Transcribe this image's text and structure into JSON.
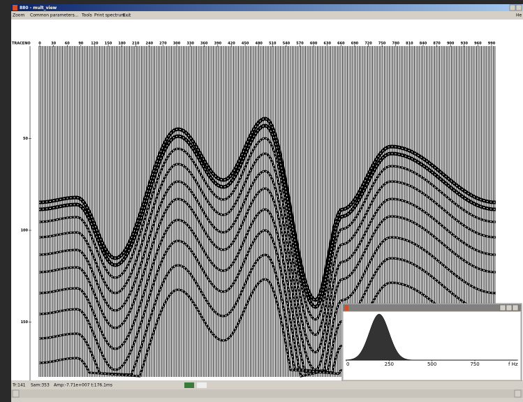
{
  "window": {
    "title": "880 - mult_view"
  },
  "menu": [
    "Zoom",
    "Common parameters...",
    "Tools",
    "Print spectrum ...",
    "Exit",
    "He"
  ],
  "plot": {
    "axis_label": "TRACENO",
    "x_ticks": [
      0,
      30,
      60,
      90,
      120,
      150,
      180,
      210,
      240,
      270,
      300,
      330,
      360,
      390,
      420,
      450,
      480,
      510,
      540,
      570,
      600,
      630,
      660,
      690,
      720,
      750,
      780,
      810,
      840,
      870,
      900,
      930,
      960,
      990
    ],
    "y_ticks": [
      50,
      100,
      150
    ]
  },
  "spectrum": {
    "x_ticks": [
      0,
      250,
      500,
      750
    ],
    "unit": "f Hz"
  },
  "status": {
    "trace": "Tr:141",
    "sample": "Sam:353",
    "amplitude": "Amp:-7.71e+007 t:176.1ms"
  }
}
